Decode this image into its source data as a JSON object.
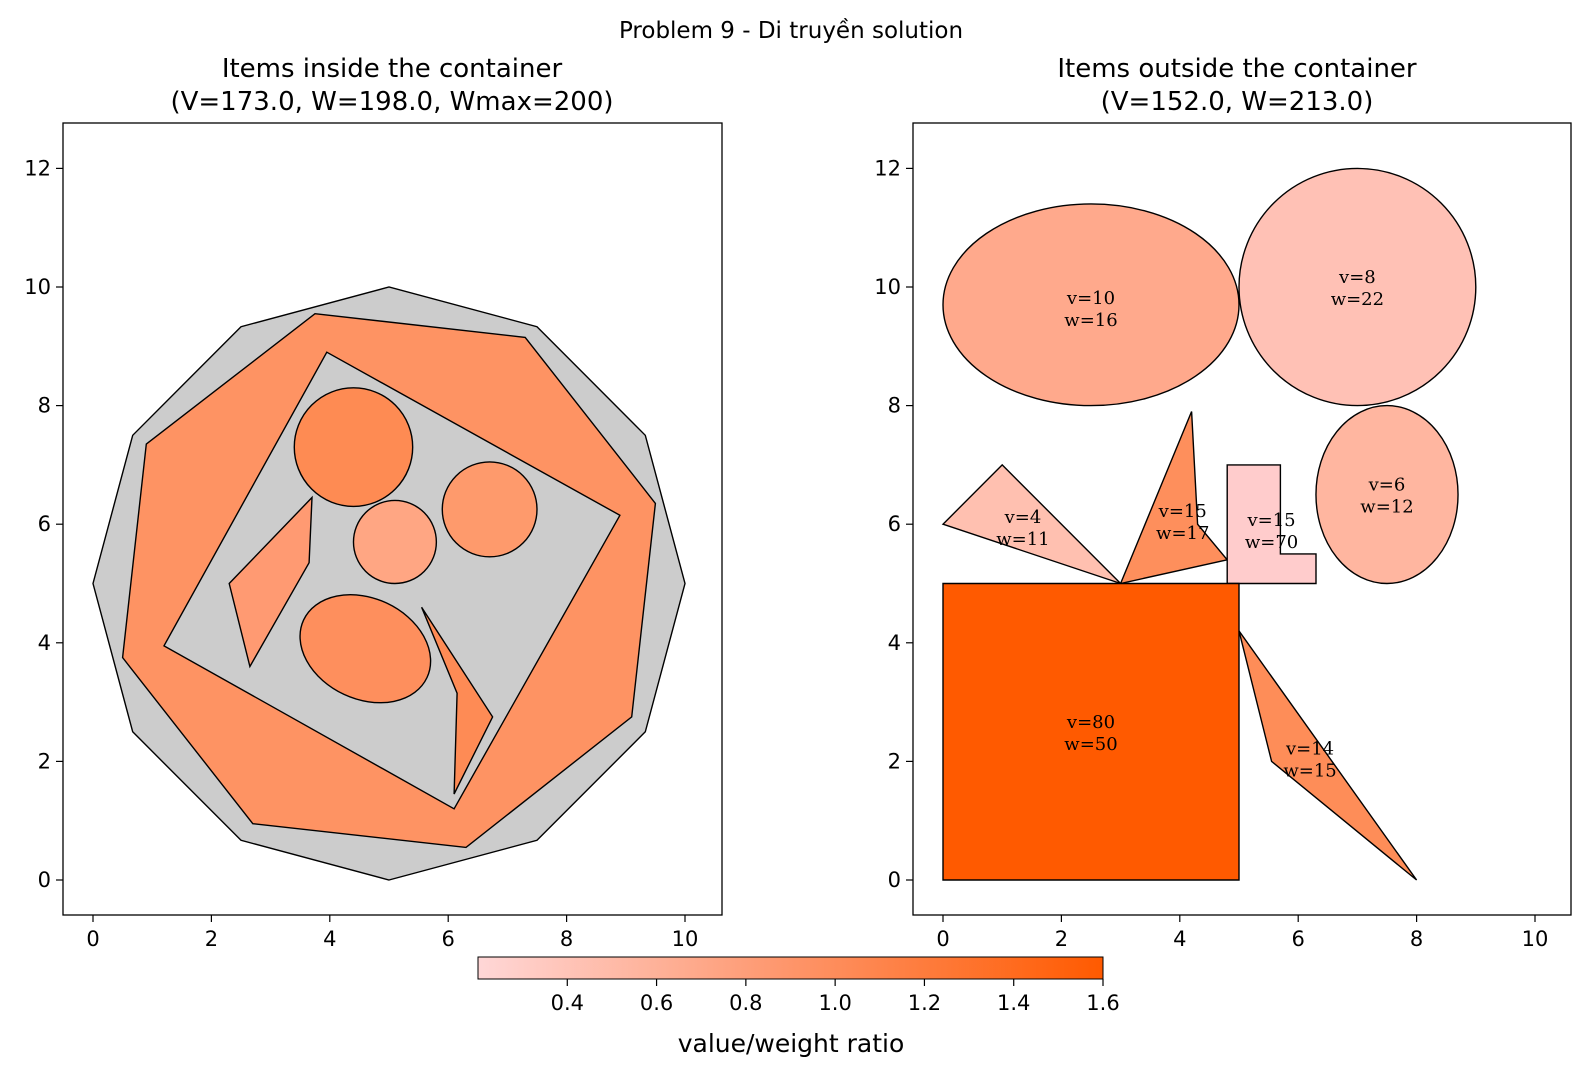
{
  "figure": {
    "suptitle": "Problem 9 - Di truyền solution",
    "container_color": "#cccccc"
  },
  "colorbar": {
    "label": "value/weight ratio",
    "vmin": 0.2,
    "vmax": 1.6,
    "ticks": [
      "0.4",
      "0.6",
      "0.8",
      "1.0",
      "1.2",
      "1.4",
      "1.6"
    ],
    "color_low": "#ffd7d7",
    "color_high": "#ff5a00"
  },
  "chart_data": [
    {
      "type": "packing",
      "title": "Items inside the container\n(V=173.0, W=198.0, Wmax=200)",
      "title_line1": "Items inside the container",
      "title_line2": "(V=173.0, W=198.0, Wmax=200)",
      "xlim": [
        -0.5,
        10.5
      ],
      "ylim": [
        -0.6,
        12.6
      ],
      "xticks": [
        0,
        2,
        4,
        6,
        8,
        10
      ],
      "yticks": [
        0,
        2,
        4,
        6,
        8,
        10,
        12
      ],
      "container": [
        [
          5,
          0
        ],
        [
          7.5,
          0.67
        ],
        [
          9.33,
          2.5
        ],
        [
          10,
          5
        ],
        [
          9.33,
          7.5
        ],
        [
          7.5,
          9.33
        ],
        [
          5,
          10
        ],
        [
          2.5,
          9.33
        ],
        [
          0.67,
          7.5
        ],
        [
          0,
          5
        ],
        [
          0.67,
          2.5
        ],
        [
          2.5,
          0.67
        ]
      ],
      "items": [
        {
          "shape": "polygon",
          "points": [
            [
              0.9,
              7.35
            ],
            [
              3.75,
              9.55
            ],
            [
              7.3,
              9.15
            ],
            [
              9.5,
              6.35
            ],
            [
              9.1,
              2.75
            ],
            [
              6.3,
              0.55
            ],
            [
              2.7,
              0.95
            ],
            [
              0.5,
              3.75
            ]
          ],
          "color": "#fe9363",
          "holes": [
            [
              [
                3.95,
                8.9
              ],
              [
                8.9,
                6.15
              ],
              [
                6.1,
                1.2
              ],
              [
                1.2,
                3.95
              ]
            ]
          ]
        },
        {
          "shape": "circle",
          "cx": 4.4,
          "cy": 7.3,
          "r": 1.0,
          "color": "#fe8b53"
        },
        {
          "shape": "circle",
          "cx": 6.7,
          "cy": 6.25,
          "r": 0.8,
          "color": "#fe9a6c"
        },
        {
          "shape": "circle",
          "cx": 5.1,
          "cy": 5.7,
          "r": 0.7,
          "color": "#ffa683"
        },
        {
          "shape": "polygon",
          "points": [
            [
              3.7,
              6.45
            ],
            [
              3.65,
              5.35
            ],
            [
              2.65,
              3.6
            ],
            [
              2.3,
              5.0
            ]
          ],
          "color": "#ff9a72"
        },
        {
          "shape": "ellipse",
          "cx": 4.6,
          "cy": 3.9,
          "rx": 1.15,
          "ry": 0.85,
          "angle": -25,
          "color": "#fe8f5d"
        },
        {
          "shape": "polygon",
          "points": [
            [
              5.55,
              4.6
            ],
            [
              6.75,
              2.75
            ],
            [
              6.1,
              1.45
            ],
            [
              6.15,
              3.15
            ]
          ],
          "color": "#fe8b55"
        }
      ]
    },
    {
      "type": "packing",
      "title": "Items outside the container\n(V=152.0, W=213.0)",
      "title_line1": "Items outside the container",
      "title_line2": "(V=152.0, W=213.0)",
      "xlim": [
        -0.5,
        10.5
      ],
      "ylim": [
        -0.6,
        12.6
      ],
      "xticks": [
        0,
        2,
        4,
        6,
        8,
        10
      ],
      "yticks": [
        0,
        2,
        4,
        6,
        8,
        10,
        12
      ],
      "items": [
        {
          "shape": "ellipse",
          "cx": 2.5,
          "cy": 9.7,
          "rx": 2.5,
          "ry": 1.7,
          "angle": 0,
          "color": "#ffa98c",
          "label_v": "v=10",
          "label_w": "w=16",
          "lx": 2.5,
          "ly": 9.65
        },
        {
          "shape": "circle",
          "cx": 7.0,
          "cy": 10.0,
          "r": 2.0,
          "color": "#ffc1b5",
          "label_v": "v=8",
          "label_w": "w=22",
          "lx": 7.0,
          "ly": 10.0
        },
        {
          "shape": "ellipse",
          "cx": 7.5,
          "cy": 6.5,
          "rx": 1.2,
          "ry": 1.5,
          "angle": 0,
          "color": "#ffb6a0",
          "label_v": "v=6",
          "label_w": "w=12",
          "lx": 7.5,
          "ly": 6.5
        },
        {
          "shape": "polygon",
          "points": [
            [
              0,
              6
            ],
            [
              1,
              7
            ],
            [
              3,
              5
            ]
          ],
          "color": "#ffc0b0",
          "label_v": "v=4",
          "label_w": "w=11",
          "lx": 1.35,
          "ly": 5.95
        },
        {
          "shape": "polygon",
          "points": [
            [
              3,
              5
            ],
            [
              4.2,
              7.9
            ],
            [
              4.3,
              6.0
            ],
            [
              4.8,
              5.4
            ]
          ],
          "color": "#fe8f5c",
          "label_v": "v=15",
          "label_w": "w=17",
          "lx": 4.05,
          "ly": 6.05
        },
        {
          "shape": "polygon",
          "points": [
            [
              4.8,
              5
            ],
            [
              6.3,
              5
            ],
            [
              6.3,
              5.5
            ],
            [
              5.7,
              5.5
            ],
            [
              5.7,
              7
            ],
            [
              4.8,
              7
            ]
          ],
          "color": "#ffcccc",
          "label_v": "v=15",
          "label_w": "w=70",
          "lx": 5.55,
          "ly": 5.9
        },
        {
          "shape": "polygon",
          "points": [
            [
              0,
              0
            ],
            [
              5,
              0
            ],
            [
              5,
              5
            ],
            [
              0,
              5
            ]
          ],
          "color": "#ff5a00",
          "label_v": "v=80",
          "label_w": "w=50",
          "lx": 2.5,
          "ly": 2.5
        },
        {
          "shape": "polygon",
          "points": [
            [
              5,
              4.2
            ],
            [
              5.55,
              2.0
            ],
            [
              8,
              0
            ]
          ],
          "color": "#fe8d58",
          "label_v": "v=14",
          "label_w": "w=15",
          "lx": 6.2,
          "ly": 2.05
        }
      ]
    }
  ]
}
